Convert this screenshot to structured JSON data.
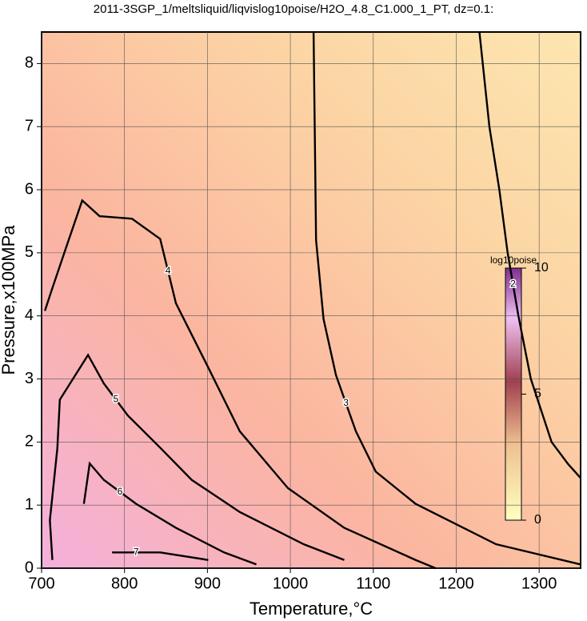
{
  "chart_data": {
    "type": "contour",
    "title": "2011-3SGP_1/meltsliquid/liqvislog10poise/H2O_4.8_C1.000_1_PT, dz=0.1:",
    "x_label": "Temperature,°C",
    "y_label": "Pressure,x100MPa",
    "xlim": [
      700,
      1350
    ],
    "ylim": [
      0,
      8.5
    ],
    "xticks": [
      700,
      800,
      900,
      1000,
      1100,
      1200,
      1300
    ],
    "yticks": [
      0,
      1,
      2,
      3,
      4,
      5,
      6,
      7,
      8
    ],
    "grid": true,
    "colorbar": {
      "label": "log10poise",
      "lim": [
        0,
        10
      ],
      "ticks": [
        0,
        5,
        10
      ]
    },
    "contours": [
      {
        "level": 2,
        "x": [
          1228,
          1240,
          1252,
          1262,
          1275,
          1290,
          1315,
          1335,
          1350
        ],
        "y": [
          8.5,
          7,
          6,
          5,
          4,
          3,
          2,
          1.65,
          1.43
        ]
      },
      {
        "level": 3,
        "x": [
          1028,
          1031,
          1040,
          1055,
          1079,
          1103,
          1151,
          1248,
          1350
        ],
        "y": [
          8.5,
          5.2,
          3.95,
          3.06,
          2.17,
          1.53,
          1.02,
          0.38,
          0.06
        ]
      },
      {
        "level": 4,
        "x": [
          704,
          712,
          730,
          749,
          770,
          809,
          843,
          862,
          901,
          939,
          997,
          1065,
          1151,
          1175
        ],
        "y": [
          4.08,
          4.4,
          5.1,
          5.83,
          5.58,
          5.54,
          5.22,
          4.2,
          3.18,
          2.17,
          1.27,
          0.64,
          0.13,
          0
        ]
      },
      {
        "level": 5,
        "x": [
          713,
          710,
          719,
          722,
          756,
          775,
          804,
          843,
          881,
          939,
          1016,
          1065
        ],
        "y": [
          0.13,
          0.76,
          1.9,
          2.67,
          3.38,
          2.93,
          2.42,
          1.91,
          1.4,
          0.89,
          0.38,
          0.13
        ]
      },
      {
        "level": 6,
        "x": [
          751,
          758,
          775,
          814,
          862,
          920,
          959
        ],
        "y": [
          1.02,
          1.66,
          1.4,
          1.02,
          0.64,
          0.25,
          0.06
        ]
      },
      {
        "level": 7,
        "x": [
          785,
          843,
          901
        ],
        "y": [
          0.25,
          0.25,
          0.13
        ]
      }
    ]
  }
}
